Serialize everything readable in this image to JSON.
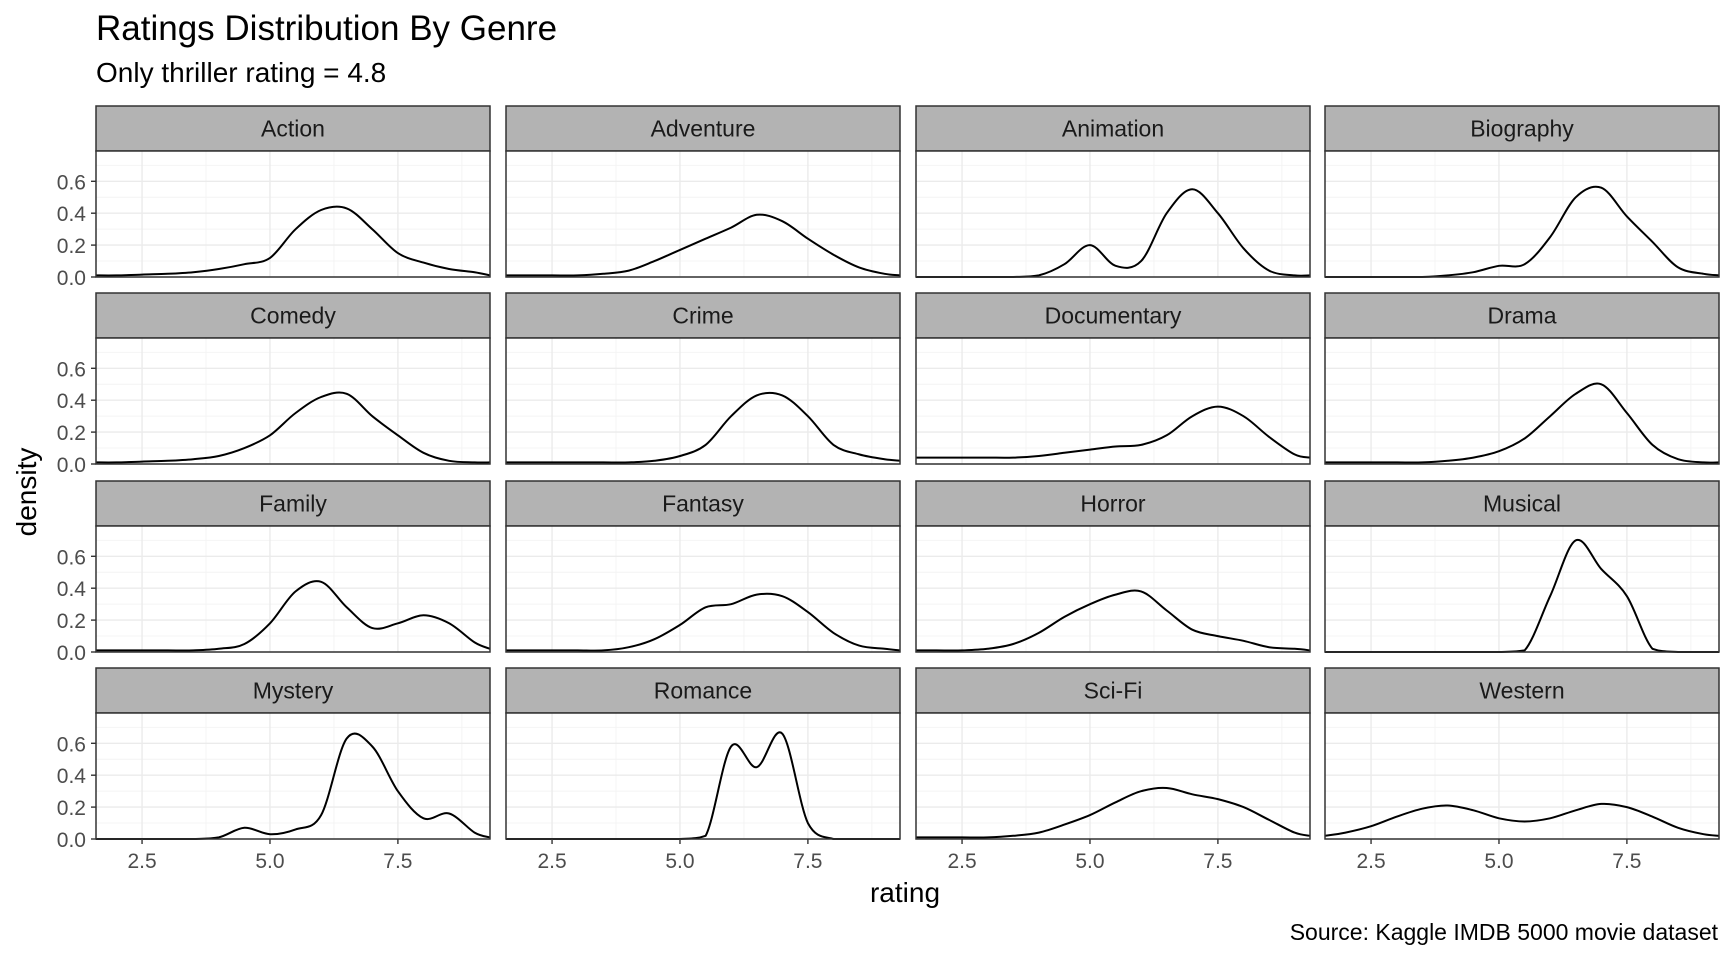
{
  "title": "Ratings Distribution By Genre",
  "subtitle": "Only thriller rating = 4.8",
  "caption": "Source: Kaggle IMDB 5000 movie dataset",
  "chart_data": {
    "type": "area",
    "facets": [
      "Action",
      "Adventure",
      "Animation",
      "Biography",
      "Comedy",
      "Crime",
      "Documentary",
      "Drama",
      "Family",
      "Fantasy",
      "Horror",
      "Musical",
      "Mystery",
      "Romance",
      "Sci-Fi",
      "Western"
    ],
    "xlabel": "rating",
    "ylabel": "density",
    "x_ticks": [
      2.5,
      5.0,
      7.5
    ],
    "x_tick_labels": [
      "2.5",
      "5.0",
      "7.5"
    ],
    "y_ticks": [
      0.0,
      0.2,
      0.4,
      0.6
    ],
    "y_tick_labels": [
      "0.0",
      "0.2",
      "0.4",
      "0.6"
    ],
    "xlim": [
      1.6,
      9.3
    ],
    "ylim": [
      0,
      0.79
    ],
    "grid": true,
    "x": [
      1.6,
      2.0,
      2.5,
      3.0,
      3.5,
      4.0,
      4.5,
      5.0,
      5.5,
      6.0,
      6.5,
      7.0,
      7.5,
      8.0,
      8.5,
      9.0,
      9.3
    ],
    "series": [
      {
        "name": "Action",
        "values": [
          0.01,
          0.01,
          0.015,
          0.02,
          0.03,
          0.05,
          0.08,
          0.12,
          0.3,
          0.42,
          0.43,
          0.3,
          0.15,
          0.09,
          0.05,
          0.03,
          0.01
        ]
      },
      {
        "name": "Adventure",
        "values": [
          0.01,
          0.01,
          0.01,
          0.01,
          0.02,
          0.04,
          0.1,
          0.17,
          0.24,
          0.31,
          0.39,
          0.35,
          0.24,
          0.14,
          0.06,
          0.02,
          0.01
        ]
      },
      {
        "name": "Animation",
        "values": [
          0.0,
          0.0,
          0.0,
          0.0,
          0.0,
          0.01,
          0.08,
          0.2,
          0.07,
          0.1,
          0.4,
          0.55,
          0.4,
          0.18,
          0.04,
          0.01,
          0.01
        ]
      },
      {
        "name": "Biography",
        "values": [
          0.0,
          0.0,
          0.0,
          0.0,
          0.0,
          0.01,
          0.03,
          0.07,
          0.08,
          0.25,
          0.5,
          0.56,
          0.38,
          0.22,
          0.06,
          0.02,
          0.01
        ]
      },
      {
        "name": "Comedy",
        "values": [
          0.01,
          0.01,
          0.015,
          0.02,
          0.03,
          0.05,
          0.1,
          0.18,
          0.32,
          0.42,
          0.44,
          0.3,
          0.18,
          0.07,
          0.02,
          0.01,
          0.01
        ]
      },
      {
        "name": "Crime",
        "values": [
          0.01,
          0.01,
          0.01,
          0.01,
          0.01,
          0.01,
          0.02,
          0.05,
          0.12,
          0.3,
          0.43,
          0.43,
          0.3,
          0.12,
          0.06,
          0.03,
          0.02
        ]
      },
      {
        "name": "Documentary",
        "values": [
          0.04,
          0.04,
          0.04,
          0.04,
          0.04,
          0.05,
          0.07,
          0.09,
          0.11,
          0.12,
          0.18,
          0.3,
          0.36,
          0.3,
          0.17,
          0.06,
          0.04
        ]
      },
      {
        "name": "Drama",
        "values": [
          0.01,
          0.01,
          0.01,
          0.01,
          0.01,
          0.02,
          0.04,
          0.08,
          0.16,
          0.3,
          0.44,
          0.5,
          0.32,
          0.12,
          0.03,
          0.01,
          0.01
        ]
      },
      {
        "name": "Family",
        "values": [
          0.01,
          0.01,
          0.01,
          0.01,
          0.01,
          0.02,
          0.05,
          0.18,
          0.38,
          0.44,
          0.28,
          0.15,
          0.18,
          0.23,
          0.18,
          0.06,
          0.02
        ]
      },
      {
        "name": "Fantasy",
        "values": [
          0.01,
          0.01,
          0.01,
          0.01,
          0.01,
          0.03,
          0.08,
          0.17,
          0.28,
          0.3,
          0.36,
          0.35,
          0.25,
          0.12,
          0.04,
          0.02,
          0.01
        ]
      },
      {
        "name": "Horror",
        "values": [
          0.01,
          0.01,
          0.01,
          0.02,
          0.05,
          0.12,
          0.22,
          0.3,
          0.36,
          0.38,
          0.26,
          0.14,
          0.1,
          0.07,
          0.03,
          0.02,
          0.01
        ]
      },
      {
        "name": "Musical",
        "values": [
          0.0,
          0.0,
          0.0,
          0.0,
          0.0,
          0.0,
          0.0,
          0.0,
          0.01,
          0.35,
          0.7,
          0.52,
          0.35,
          0.02,
          0.0,
          0.0,
          0.0
        ]
      },
      {
        "name": "Mystery",
        "values": [
          0.0,
          0.0,
          0.0,
          0.0,
          0.0,
          0.01,
          0.07,
          0.03,
          0.06,
          0.15,
          0.63,
          0.58,
          0.3,
          0.13,
          0.16,
          0.04,
          0.01
        ]
      },
      {
        "name": "Romance",
        "values": [
          0.0,
          0.0,
          0.0,
          0.0,
          0.0,
          0.0,
          0.0,
          0.0,
          0.02,
          0.58,
          0.45,
          0.66,
          0.1,
          0.0,
          0.0,
          0.0,
          0.0
        ]
      },
      {
        "name": "Sci-Fi",
        "values": [
          0.01,
          0.01,
          0.01,
          0.01,
          0.02,
          0.04,
          0.09,
          0.15,
          0.23,
          0.3,
          0.32,
          0.28,
          0.25,
          0.2,
          0.12,
          0.04,
          0.02
        ]
      },
      {
        "name": "Western",
        "values": [
          0.02,
          0.04,
          0.08,
          0.14,
          0.19,
          0.21,
          0.18,
          0.13,
          0.11,
          0.13,
          0.18,
          0.22,
          0.2,
          0.14,
          0.07,
          0.03,
          0.02
        ]
      }
    ]
  },
  "colors": {
    "strip_fill": "#b3b3b3",
    "grid_major": "#ebebeb",
    "grid_minor": "#f4f4f4",
    "panel_border": "#333333",
    "line": "#000000",
    "axis_text": "#4d4d4d"
  }
}
